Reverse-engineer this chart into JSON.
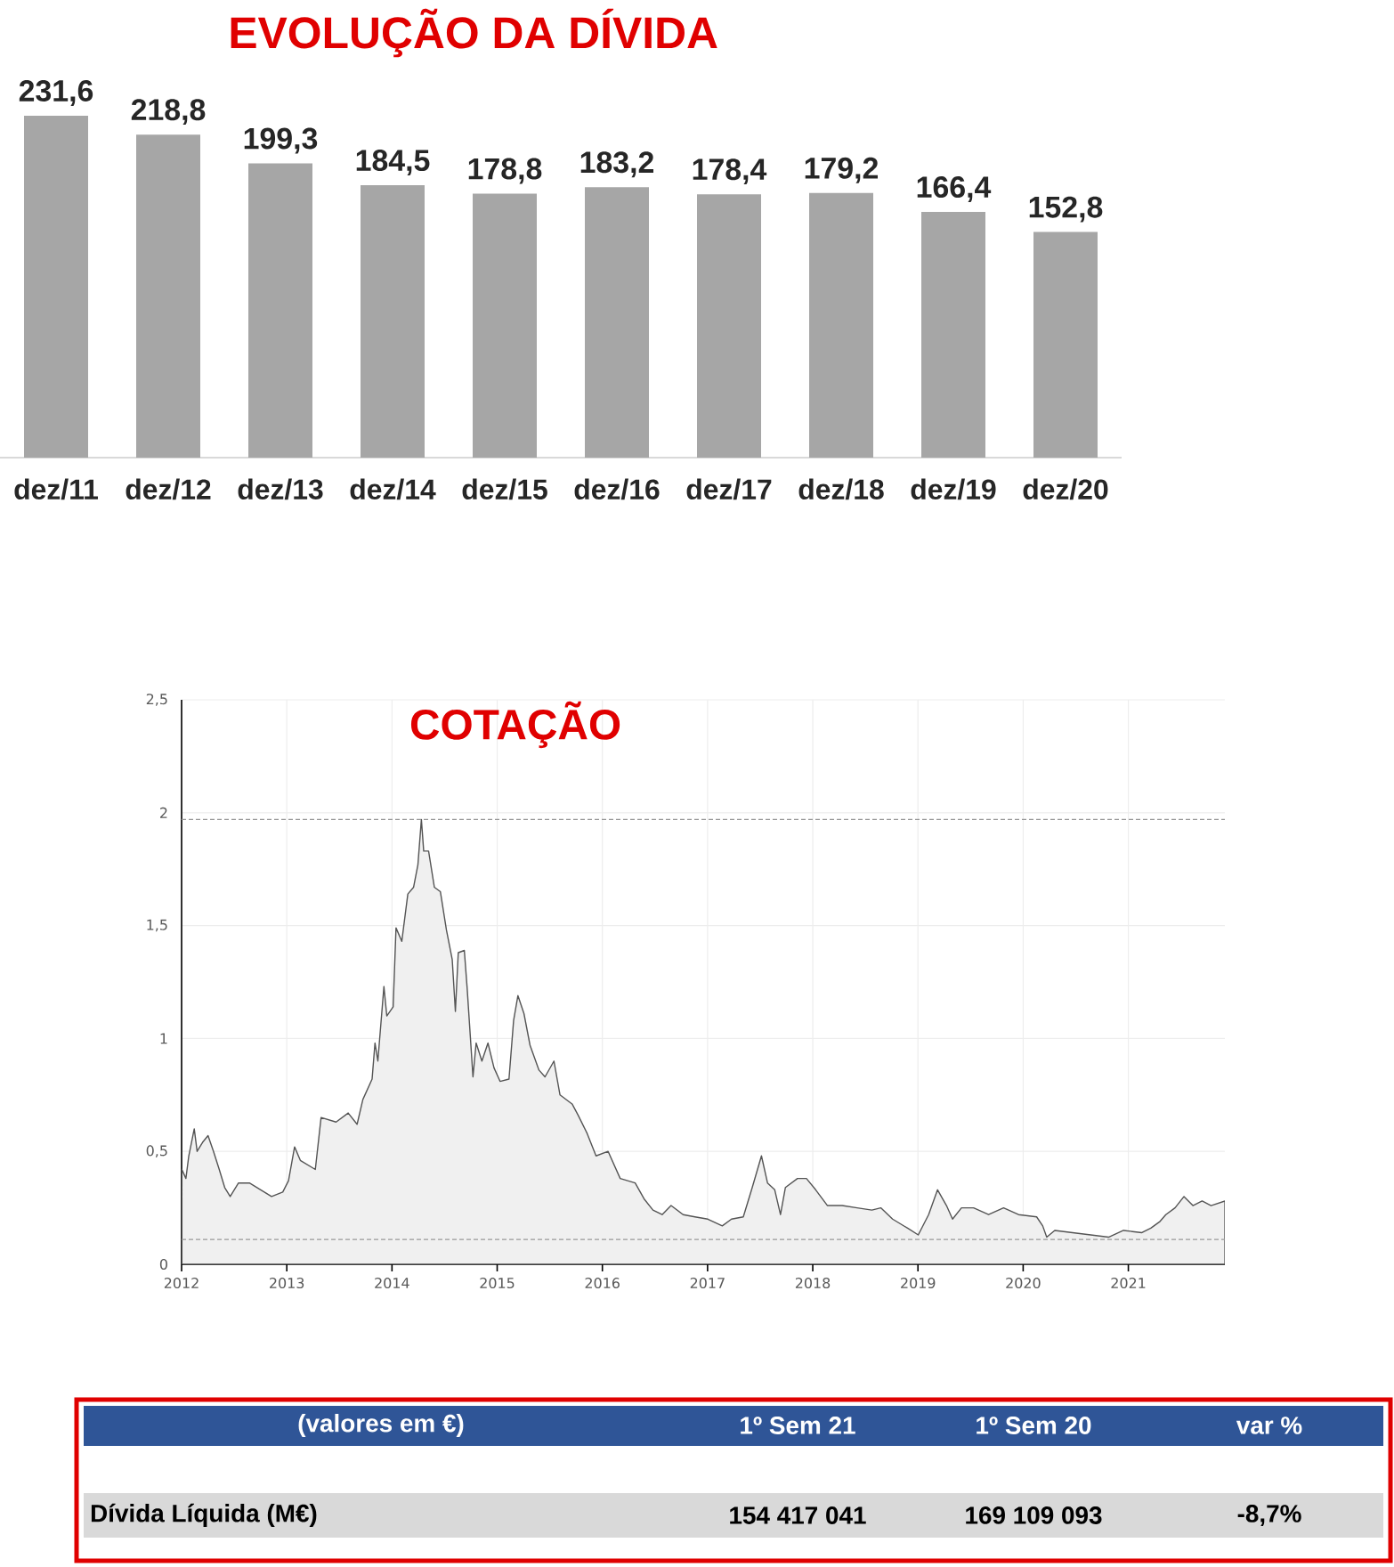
{
  "chart_data": [
    {
      "type": "bar",
      "title": "EVOLUÇÃO  DA DÍVIDA",
      "categories": [
        "dez/11",
        "dez/12",
        "dez/13",
        "dez/14",
        "dez/15",
        "dez/16",
        "dez/17",
        "dez/18",
        "dez/19",
        "dez/20"
      ],
      "values": [
        231.6,
        218.8,
        199.3,
        184.5,
        178.8,
        183.2,
        178.4,
        179.2,
        166.4,
        152.8
      ],
      "value_labels": [
        "231,6",
        "218,8",
        "199,3",
        "184,5",
        "178,8",
        "183,2",
        "178,4",
        "179,2",
        "166,4",
        "152,8"
      ],
      "color": "#a6a6a6",
      "tick_labels": "x"
    },
    {
      "type": "area",
      "title": "COTAÇÃO",
      "color": "#f0f0f0",
      "grid": true,
      "xlim": [
        "2012-01-01",
        "2021-12-02"
      ],
      "ylim": [
        0,
        2.5
      ],
      "xticks": [
        "2012",
        "2013",
        "2014",
        "2015",
        "2016",
        "2017",
        "2018",
        "2019",
        "2020",
        "2021"
      ],
      "yticks": [
        0,
        {
          "value": 0.5,
          "label": "0,5"
        },
        1,
        {
          "value": 1.5,
          "label": "1,5"
        },
        2,
        {
          "value": 2.5,
          "label": "2,5"
        }
      ],
      "ref_lines": [
        {
          "axis": "y",
          "value": 1.97,
          "color": "#999999",
          "line_style": "dashed"
        },
        {
          "axis": "y",
          "value": 0.11,
          "color": "#999999",
          "line_style": "dashed"
        }
      ],
      "x": [
        "2012-01-02",
        "2012-01-16",
        "2012-01-26",
        "2012-02-14",
        "2012-02-24",
        "2012-03-14",
        "2012-04-02",
        "2012-04-21",
        "2012-05-11",
        "2012-05-30",
        "2012-06-18",
        "2012-07-17",
        "2012-08-24",
        "2012-10-02",
        "2012-11-09",
        "2012-12-18",
        "2013-01-07",
        "2013-01-28",
        "2013-02-17",
        "2013-04-10",
        "2013-04-30",
        "2013-06-21",
        "2013-08-02",
        "2013-09-02",
        "2013-09-22",
        "2013-10-24",
        "2013-11-03",
        "2013-11-13",
        "2013-12-04",
        "2013-12-14",
        "2014-01-05",
        "2014-01-15",
        "2014-02-04",
        "2014-02-25",
        "2014-03-17",
        "2014-04-01",
        "2014-04-13",
        "2014-04-21",
        "2014-05-08",
        "2014-05-28",
        "2014-06-18",
        "2014-07-09",
        "2014-07-29",
        "2014-08-09",
        "2014-08-19",
        "2014-09-09",
        "2014-09-19",
        "2014-10-09",
        "2014-10-20",
        "2014-11-09",
        "2014-11-30",
        "2014-12-21",
        "2015-01-11",
        "2015-02-11",
        "2015-02-27",
        "2015-03-14",
        "2015-04-04",
        "2015-04-25",
        "2015-05-26",
        "2015-06-16",
        "2015-07-17",
        "2015-08-07",
        "2015-09-18",
        "2015-10-09",
        "2015-11-09",
        "2015-12-10",
        "2016-01-21",
        "2016-03-03",
        "2016-04-24",
        "2016-05-25",
        "2016-06-25",
        "2016-07-27",
        "2016-08-27",
        "2016-10-08",
        "2016-11-18",
        "2017-01-02",
        "2017-02-21",
        "2017-03-25",
        "2017-05-05",
        "2017-06-05",
        "2017-07-07",
        "2017-07-28",
        "2017-08-22",
        "2017-09-11",
        "2017-09-28",
        "2017-11-09",
        "2017-12-10",
        "2018-01-11",
        "2018-02-21",
        "2018-04-13",
        "2018-06-04",
        "2018-07-25",
        "2018-08-25",
        "2018-10-05",
        "2018-11-26",
        "2019-01-02",
        "2019-02-07",
        "2019-03-10",
        "2019-04-10",
        "2019-05-01",
        "2019-06-01",
        "2019-07-13",
        "2019-09-03",
        "2019-10-25",
        "2019-12-16",
        "2020-02-17",
        "2020-03-09",
        "2020-03-23",
        "2020-04-20",
        "2020-06-21",
        "2020-08-23",
        "2020-10-24",
        "2020-12-15",
        "2021-02-17",
        "2021-03-20",
        "2021-04-21",
        "2021-05-11",
        "2021-06-12",
        "2021-07-13",
        "2021-08-13",
        "2021-09-14",
        "2021-10-15",
        "2021-12-02"
      ],
      "values": [
        0.42,
        0.38,
        0.48,
        0.6,
        0.5,
        0.54,
        0.57,
        0.5,
        0.42,
        0.34,
        0.3,
        0.36,
        0.36,
        0.33,
        0.3,
        0.32,
        0.37,
        0.52,
        0.46,
        0.42,
        0.65,
        0.63,
        0.67,
        0.62,
        0.73,
        0.82,
        0.98,
        0.9,
        1.23,
        1.1,
        1.14,
        1.49,
        1.43,
        1.64,
        1.67,
        1.77,
        1.97,
        1.83,
        1.83,
        1.67,
        1.65,
        1.48,
        1.35,
        1.12,
        1.38,
        1.39,
        1.22,
        0.83,
        0.98,
        0.9,
        0.98,
        0.87,
        0.81,
        0.82,
        1.08,
        1.19,
        1.11,
        0.97,
        0.86,
        0.83,
        0.9,
        0.75,
        0.71,
        0.66,
        0.58,
        0.48,
        0.5,
        0.38,
        0.36,
        0.29,
        0.24,
        0.22,
        0.26,
        0.22,
        0.21,
        0.2,
        0.17,
        0.2,
        0.21,
        0.34,
        0.48,
        0.36,
        0.33,
        0.22,
        0.34,
        0.38,
        0.38,
        0.33,
        0.26,
        0.26,
        0.25,
        0.24,
        0.25,
        0.2,
        0.16,
        0.13,
        0.22,
        0.33,
        0.26,
        0.2,
        0.25,
        0.25,
        0.22,
        0.25,
        0.22,
        0.21,
        0.17,
        0.12,
        0.15,
        0.14,
        0.13,
        0.12,
        0.15,
        0.14,
        0.16,
        0.19,
        0.22,
        0.25,
        0.3,
        0.26,
        0.28,
        0.26,
        0.28
      ]
    },
    {
      "type": "other",
      "title": "(valores em €)",
      "categories": [
        "1º Sem 21",
        "1º Sem 20",
        "var %"
      ],
      "annotations": [
        "Dívida Líquida (M€)",
        "154 417 041",
        "169 109 093",
        "-8,7%"
      ]
    }
  ]
}
